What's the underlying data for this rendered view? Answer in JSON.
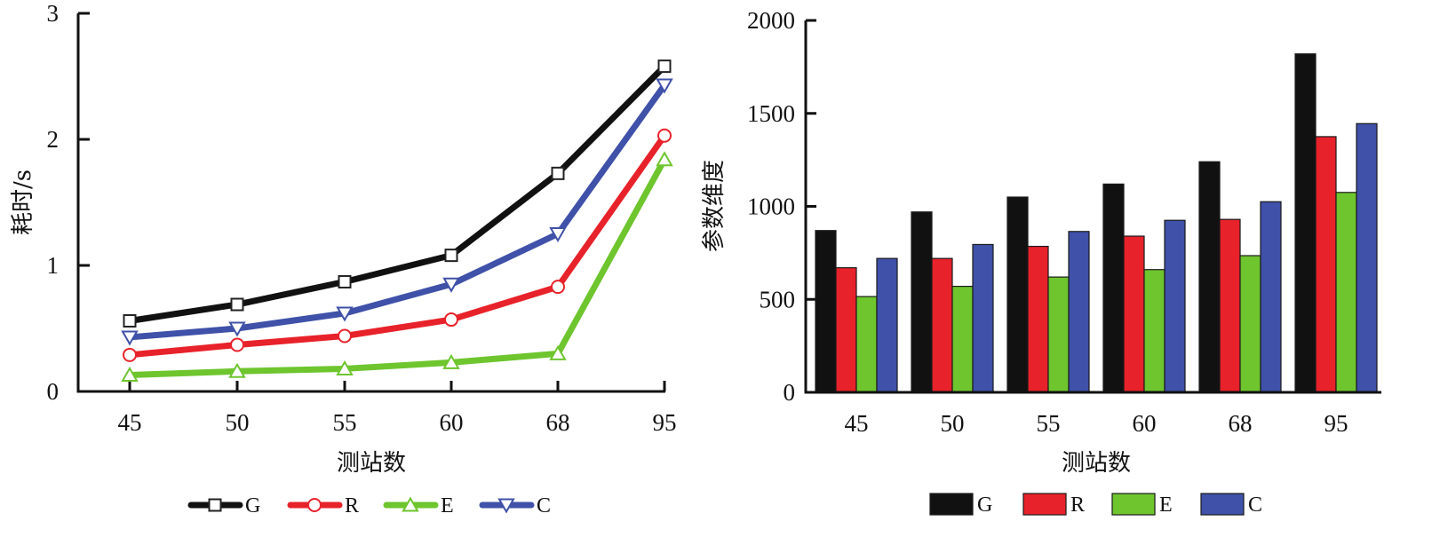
{
  "chart_data": [
    {
      "type": "line",
      "title": "",
      "xlabel": "测站数",
      "ylabel": "耗时/s",
      "categories": [
        "45",
        "50",
        "55",
        "60",
        "68",
        "95"
      ],
      "ylim": [
        0,
        3
      ],
      "yticks": [
        "0",
        "1",
        "2",
        "3"
      ],
      "grid": false,
      "legend_position": "bottom",
      "series": [
        {
          "name": "G",
          "color": "#111111",
          "marker": "square",
          "values": [
            0.56,
            0.69,
            0.87,
            1.08,
            1.73,
            2.58
          ]
        },
        {
          "name": "R",
          "color": "#e8222a",
          "marker": "circle",
          "values": [
            0.29,
            0.37,
            0.44,
            0.57,
            0.83,
            2.03
          ]
        },
        {
          "name": "E",
          "color": "#6ec52e",
          "marker": "triangle-up",
          "values": [
            0.13,
            0.16,
            0.18,
            0.23,
            0.3,
            1.84
          ]
        },
        {
          "name": "C",
          "color": "#3f51a8",
          "marker": "triangle-down",
          "values": [
            0.43,
            0.5,
            0.62,
            0.85,
            1.25,
            2.43
          ]
        }
      ]
    },
    {
      "type": "bar",
      "title": "",
      "xlabel": "测站数",
      "ylabel": "参数维度",
      "categories": [
        "45",
        "50",
        "55",
        "60",
        "68",
        "95"
      ],
      "ylim": [
        0,
        2000
      ],
      "yticks": [
        "0",
        "500",
        "1000",
        "1500",
        "2000"
      ],
      "grid": false,
      "legend_position": "bottom",
      "series": [
        {
          "name": "G",
          "color": "#111111",
          "values": [
            870,
            970,
            1050,
            1120,
            1240,
            1820
          ]
        },
        {
          "name": "R",
          "color": "#e8222a",
          "values": [
            670,
            720,
            785,
            840,
            930,
            1375
          ]
        },
        {
          "name": "E",
          "color": "#6ec52e",
          "values": [
            515,
            570,
            620,
            660,
            735,
            1075
          ]
        },
        {
          "name": "C",
          "color": "#3f51a8",
          "values": [
            720,
            795,
            865,
            925,
            1025,
            1445
          ]
        }
      ]
    }
  ]
}
